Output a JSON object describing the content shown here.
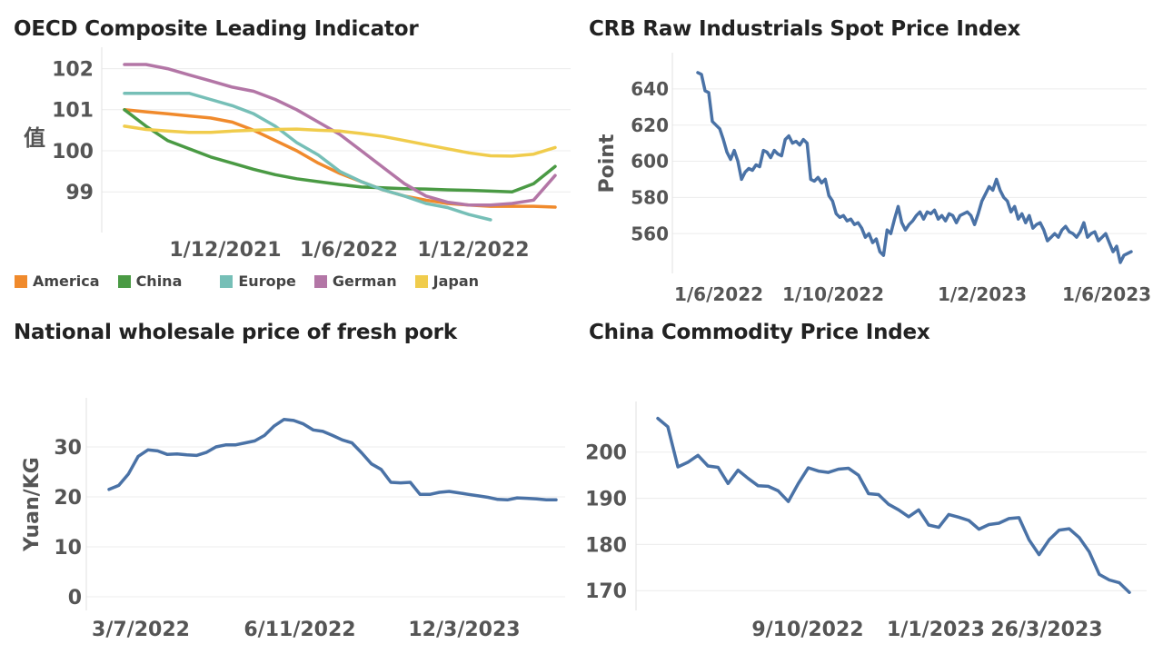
{
  "chart_data": [
    {
      "id": "oecd",
      "type": "line",
      "title": "OECD Composite Leading Indicator",
      "ylabel": "值",
      "xlabel": "",
      "x_tick_labels": [
        "1/12/2021",
        "1/6/2022",
        "1/12/2022"
      ],
      "y_ticks": [
        99,
        100,
        101,
        102
      ],
      "ylim": [
        98.1,
        102.3
      ],
      "x": [
        "2021-07",
        "2021-08",
        "2021-09",
        "2021-10",
        "2021-11",
        "2021-12",
        "2022-01",
        "2022-02",
        "2022-03",
        "2022-04",
        "2022-05",
        "2022-06",
        "2022-07",
        "2022-08",
        "2022-09",
        "2022-10",
        "2022-11",
        "2022-12",
        "2023-01",
        "2023-02",
        "2023-03"
      ],
      "legend_position": "bottom",
      "series": [
        {
          "name": "America",
          "color": "#f08a2c",
          "values": [
            101.0,
            100.95,
            100.9,
            100.85,
            100.8,
            100.7,
            100.5,
            100.25,
            100.0,
            99.7,
            99.45,
            99.25,
            99.05,
            98.9,
            98.8,
            98.72,
            98.68,
            98.65,
            98.65,
            98.65,
            98.63
          ]
        },
        {
          "name": "China",
          "color": "#4a9a44",
          "values": [
            101.0,
            100.6,
            100.25,
            100.05,
            99.85,
            99.7,
            99.55,
            99.42,
            99.32,
            99.25,
            99.18,
            99.12,
            99.1,
            99.08,
            99.07,
            99.05,
            99.04,
            99.02,
            99.0,
            99.2,
            99.62
          ]
        },
        {
          "name": "Europe",
          "color": "#76bfb7",
          "values": [
            101.4,
            101.4,
            101.4,
            101.4,
            101.25,
            101.1,
            100.9,
            100.6,
            100.2,
            99.9,
            99.5,
            99.25,
            99.05,
            98.9,
            98.72,
            98.62,
            98.45,
            98.32,
            null,
            null,
            null
          ]
        },
        {
          "name": "German",
          "color": "#b376a6",
          "values": [
            102.1,
            102.1,
            102.0,
            101.85,
            101.7,
            101.55,
            101.45,
            101.25,
            101.0,
            100.7,
            100.4,
            100.0,
            99.6,
            99.2,
            98.9,
            98.75,
            98.68,
            98.68,
            98.72,
            98.8,
            99.4
          ]
        },
        {
          "name": "Japan",
          "color": "#f0cc4c",
          "values": [
            100.6,
            100.52,
            100.48,
            100.45,
            100.45,
            100.48,
            100.5,
            100.52,
            100.53,
            100.5,
            100.48,
            100.42,
            100.35,
            100.25,
            100.15,
            100.05,
            99.95,
            99.88,
            99.87,
            99.92,
            100.08
          ]
        }
      ]
    },
    {
      "id": "crb",
      "type": "line",
      "title": "CRB Raw Industrials Spot Price Index",
      "ylabel": "Point",
      "xlabel": "",
      "x_tick_labels": [
        "1/6/2022",
        "1/10/2022",
        "1/2/2023",
        "1/6/2023"
      ],
      "y_ticks": [
        560,
        580,
        600,
        620,
        640
      ],
      "ylim": [
        540,
        655
      ],
      "series": [
        {
          "name": "",
          "color": "#4a72a6",
          "values": [
            649,
            648,
            639,
            638,
            622,
            620,
            618,
            612,
            605,
            601,
            606,
            600,
            590,
            594,
            596,
            595,
            598,
            597,
            606,
            605,
            602,
            606,
            604,
            603,
            612,
            614,
            610,
            611,
            609,
            612,
            610,
            590,
            589,
            591,
            588,
            590,
            581,
            578,
            571,
            569,
            570,
            567,
            568,
            565,
            566,
            563,
            558,
            560,
            555,
            557,
            550,
            548,
            562,
            560,
            568,
            575,
            566,
            562,
            565,
            567,
            570,
            572,
            568,
            572,
            571,
            573,
            568,
            570,
            567,
            571,
            570,
            566,
            570,
            571,
            572,
            570,
            565,
            571,
            578,
            582,
            586,
            584,
            590,
            584,
            580,
            578,
            572,
            575,
            568,
            571,
            566,
            570,
            563,
            565,
            566,
            562,
            556,
            558,
            560,
            558,
            562,
            564,
            561,
            560,
            558,
            561,
            566,
            558,
            560,
            561,
            556,
            558,
            560,
            555,
            550,
            553,
            544,
            548,
            549,
            550
          ]
        }
      ]
    },
    {
      "id": "pork",
      "type": "line",
      "title": "National wholesale price of fresh pork",
      "ylabel": "Yuan/KG",
      "xlabel": "",
      "x_tick_labels": [
        "3/7/2022",
        "6/11/2022",
        "12/3/2023"
      ],
      "y_ticks": [
        0,
        10,
        20,
        30
      ],
      "ylim": [
        -2,
        38
      ],
      "series": [
        {
          "name": "",
          "color": "#4a72a6",
          "values": [
            21.5,
            22.3,
            24.6,
            28.1,
            29.4,
            29.2,
            28.5,
            28.6,
            28.4,
            28.3,
            28.9,
            30.0,
            30.4,
            30.4,
            30.8,
            31.2,
            32.3,
            34.2,
            35.5,
            35.3,
            34.6,
            33.4,
            33.1,
            32.3,
            31.4,
            30.8,
            28.8,
            26.6,
            25.5,
            22.9,
            22.8,
            22.9,
            20.5,
            20.5,
            20.9,
            21.1,
            20.8,
            20.5,
            20.2,
            19.9,
            19.5,
            19.4,
            19.8,
            19.7,
            19.6,
            19.4,
            19.4
          ]
        }
      ]
    },
    {
      "id": "ccpi",
      "type": "line",
      "title": "China Commodity Price Index",
      "ylabel": "",
      "xlabel": "",
      "x_tick_labels": [
        "9/10/2022",
        "1/1/2023",
        "26/3/2023"
      ],
      "y_ticks": [
        170,
        180,
        190,
        200
      ],
      "ylim": [
        166.5,
        209
      ],
      "series": [
        {
          "name": "",
          "color": "#4a72a6",
          "values": [
            207.3,
            205.5,
            196.8,
            197.8,
            199.3,
            197.0,
            196.7,
            193.2,
            196.1,
            194.3,
            192.7,
            192.6,
            191.6,
            189.3,
            193.2,
            196.6,
            195.9,
            195.6,
            196.3,
            196.5,
            195.0,
            191.0,
            190.8,
            188.7,
            187.5,
            186.0,
            187.5,
            184.2,
            183.7,
            186.5,
            185.9,
            185.2,
            183.3,
            184.3,
            184.6,
            185.6,
            185.8,
            181.0,
            177.8,
            181.0,
            183.1,
            183.4,
            181.5,
            178.4,
            173.5,
            172.3,
            171.7,
            169.6
          ]
        }
      ]
    }
  ]
}
